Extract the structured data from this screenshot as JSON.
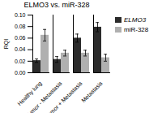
{
  "chart_data": {
    "type": "bar",
    "title": "ELMO3 vs. miR-328",
    "ylabel": "RQI",
    "categories": [
      "Healthy lung",
      "Tumor - Metastasis",
      "Tumor + Metastasis",
      "Metastasis"
    ],
    "series": [
      {
        "name": "ELMO3",
        "color": "#2b2b2b",
        "values": [
          0.021,
          0.023,
          0.06,
          0.079
        ],
        "errors": [
          0.003,
          0.005,
          0.007,
          0.008
        ]
      },
      {
        "name": "miR-328",
        "color": "#b0b0b0",
        "values": [
          0.065,
          0.034,
          0.034,
          0.026
        ],
        "errors": [
          0.01,
          0.005,
          0.005,
          0.006
        ]
      }
    ],
    "ylim": [
      0.0,
      0.1
    ],
    "yticks": [
      {
        "value": 0.0,
        "label": "0.00"
      },
      {
        "value": 0.02,
        "label": "0.02"
      },
      {
        "value": 0.04,
        "label": "0.04"
      },
      {
        "value": 0.06,
        "label": "0.06"
      },
      {
        "value": 0.08,
        "label": "0.08"
      },
      {
        "value": 0.1,
        "label": "0.10"
      }
    ],
    "grid": false,
    "legend": "upper right"
  }
}
